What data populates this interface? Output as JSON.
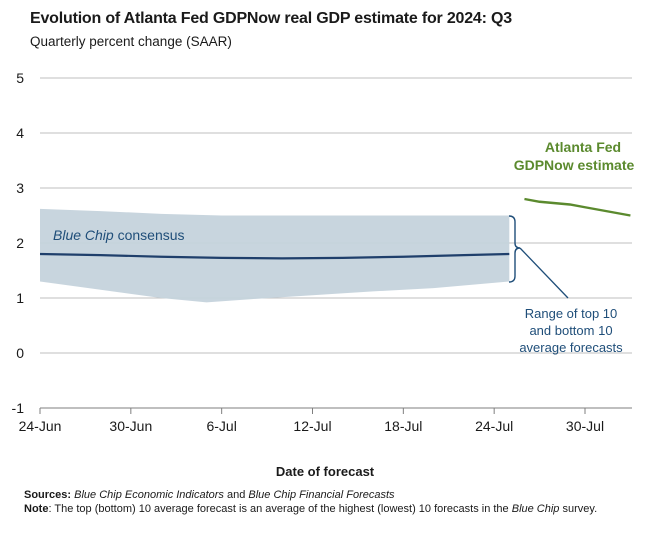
{
  "header": {
    "title": "Evolution of Atlanta Fed GDPNow real GDP estimate for 2024: Q3",
    "subtitle": "Quarterly percent change (SAAR)"
  },
  "footer": {
    "sources_label": "Sources:",
    "sources_1": "Blue Chip Economic Indicators",
    "sources_and": " and ",
    "sources_2": "Blue Chip Financial Forecasts",
    "note_label": "Note",
    "note_text_1": ": The top (bottom) 10 average forecast is an average of the highest (lowest) 10 forecasts in the ",
    "note_bluechip": "Blue Chip",
    "note_text_2": " survey."
  },
  "colors": {
    "band": "#c5d3dc",
    "consensus": "#1f3f6b",
    "gdpnow": "#5b8a2e",
    "annotation": "#1f4e79",
    "grid": "#bfbfbf",
    "axis": "#7f7f7f"
  },
  "chart_data": {
    "type": "line",
    "title": "Evolution of Atlanta Fed GDPNow real GDP estimate for 2024: Q3",
    "subtitle": "Quarterly percent change (SAAR)",
    "xlabel": "Date of forecast",
    "ylabel": "",
    "ylim": [
      -1,
      5
    ],
    "yticks": [
      -1,
      0,
      1,
      2,
      3,
      4,
      5
    ],
    "xlim": [
      "2024-06-24",
      "2024-08-02"
    ],
    "xticks": [
      "24-Jun",
      "30-Jun",
      "6-Jul",
      "12-Jul",
      "18-Jul",
      "24-Jul",
      "30-Jul"
    ],
    "xtick_dates": [
      "2024-06-24",
      "2024-06-30",
      "2024-07-06",
      "2024-07-12",
      "2024-07-18",
      "2024-07-24",
      "2024-07-30"
    ],
    "grid": "horizontal",
    "series": [
      {
        "name": "Blue Chip consensus",
        "kind": "line",
        "color": "#1f3f6b",
        "points": [
          [
            "2024-06-24",
            1.8
          ],
          [
            "2024-06-28",
            1.78
          ],
          [
            "2024-07-02",
            1.75
          ],
          [
            "2024-07-06",
            1.73
          ],
          [
            "2024-07-10",
            1.72
          ],
          [
            "2024-07-14",
            1.73
          ],
          [
            "2024-07-18",
            1.75
          ],
          [
            "2024-07-22",
            1.78
          ],
          [
            "2024-07-25",
            1.8
          ]
        ]
      },
      {
        "name": "Range of top 10 and bottom 10 average forecasts",
        "kind": "band",
        "color": "#c5d3dc",
        "upper": [
          [
            "2024-06-24",
            2.62
          ],
          [
            "2024-06-28",
            2.58
          ],
          [
            "2024-07-02",
            2.53
          ],
          [
            "2024-07-06",
            2.5
          ],
          [
            "2024-07-10",
            2.5
          ],
          [
            "2024-07-14",
            2.5
          ],
          [
            "2024-07-18",
            2.5
          ],
          [
            "2024-07-22",
            2.5
          ],
          [
            "2024-07-25",
            2.5
          ]
        ],
        "lower": [
          [
            "2024-06-24",
            1.3
          ],
          [
            "2024-06-28",
            1.15
          ],
          [
            "2024-07-02",
            1.0
          ],
          [
            "2024-07-05",
            0.92
          ],
          [
            "2024-07-08",
            0.98
          ],
          [
            "2024-07-12",
            1.05
          ],
          [
            "2024-07-16",
            1.12
          ],
          [
            "2024-07-20",
            1.18
          ],
          [
            "2024-07-25",
            1.3
          ]
        ]
      },
      {
        "name": "Atlanta Fed GDPNow estimate",
        "kind": "line",
        "color": "#5b8a2e",
        "points": [
          [
            "2024-07-26",
            2.8
          ],
          [
            "2024-07-27",
            2.75
          ],
          [
            "2024-07-29",
            2.7
          ],
          [
            "2024-07-30",
            2.65
          ],
          [
            "2024-07-31",
            2.6
          ],
          [
            "2024-08-02",
            2.5
          ]
        ]
      }
    ],
    "annotations": [
      {
        "text": [
          "Atlanta Fed",
          "GDPNow estimate"
        ],
        "color": "#5b8a2e"
      },
      {
        "text_italic": "Blue Chip",
        "text": " consensus",
        "color": "#1f4e79"
      },
      {
        "text": [
          "Range of top 10",
          "and bottom 10",
          "average forecasts"
        ],
        "color": "#1f4e79"
      }
    ]
  }
}
